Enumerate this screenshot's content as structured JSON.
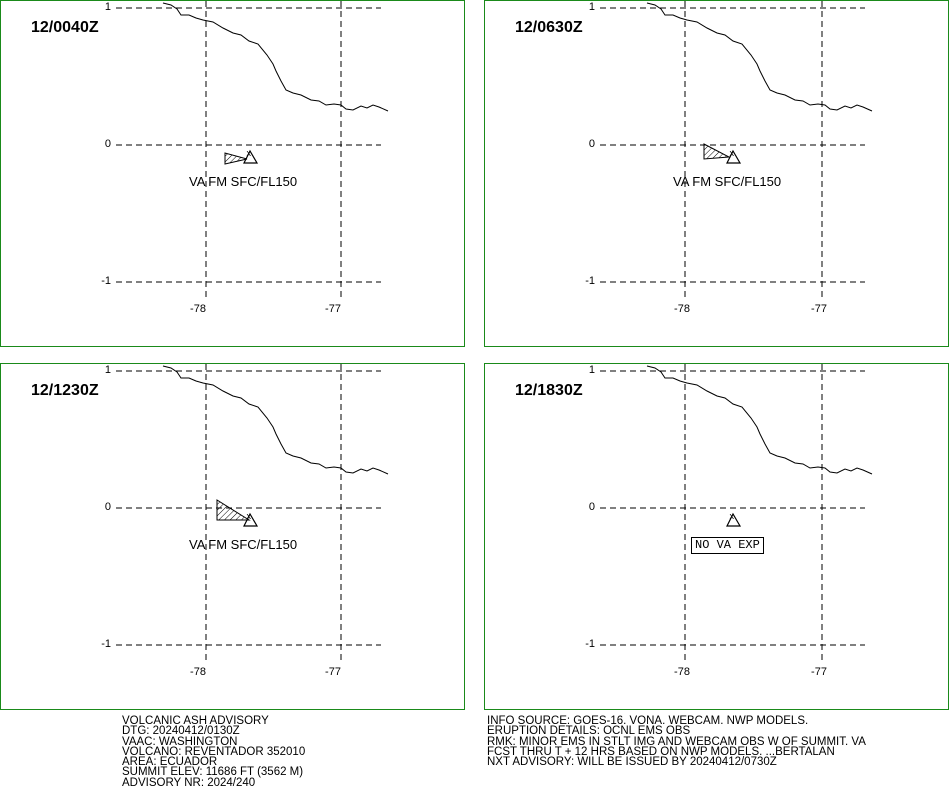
{
  "panels": [
    {
      "time": "12/0040Z",
      "va_label": "VA FM SFC/FL150",
      "ash": "small"
    },
    {
      "time": "12/0630Z",
      "va_label": "VA FM SFC/FL150",
      "ash": "medium"
    },
    {
      "time": "12/1230Z",
      "va_label": "VA FM SFC/FL150",
      "ash": "large"
    },
    {
      "time": "12/1830Z",
      "va_label": "NO VA EXP",
      "ash": "none"
    }
  ],
  "axes": {
    "lat_ticks": [
      "1",
      "0",
      "-1"
    ],
    "lon_ticks": [
      "-78",
      "-77"
    ]
  },
  "advisory_left": [
    "VOLCANIC ASH ADVISORY",
    "DTG: 20240412/0130Z",
    "VAAC: WASHINGTON",
    "VOLCANO: REVENTADOR 352010",
    "AREA: ECUADOR",
    "SUMMIT ELEV: 11686 FT (3562 M)",
    "ADVISORY NR: 2024/240"
  ],
  "advisory_right": [
    "INFO SOURCE: GOES-16. VONA. WEBCAM. NWP MODELS.",
    "ERUPTION DETAILS: OCNL EMS OBS",
    "RMK: MINOR EMS IN STLT IMG AND WEBCAM OBS W OF SUMMIT. VA",
    "FCST THRU T + 12 HRS BASED ON NWP MODELS. ...BERTALAN",
    "NXT ADVISORY: WILL BE ISSUED BY 20240412/0730Z"
  ],
  "colors": {
    "panel_border": "#1a8a1a"
  }
}
